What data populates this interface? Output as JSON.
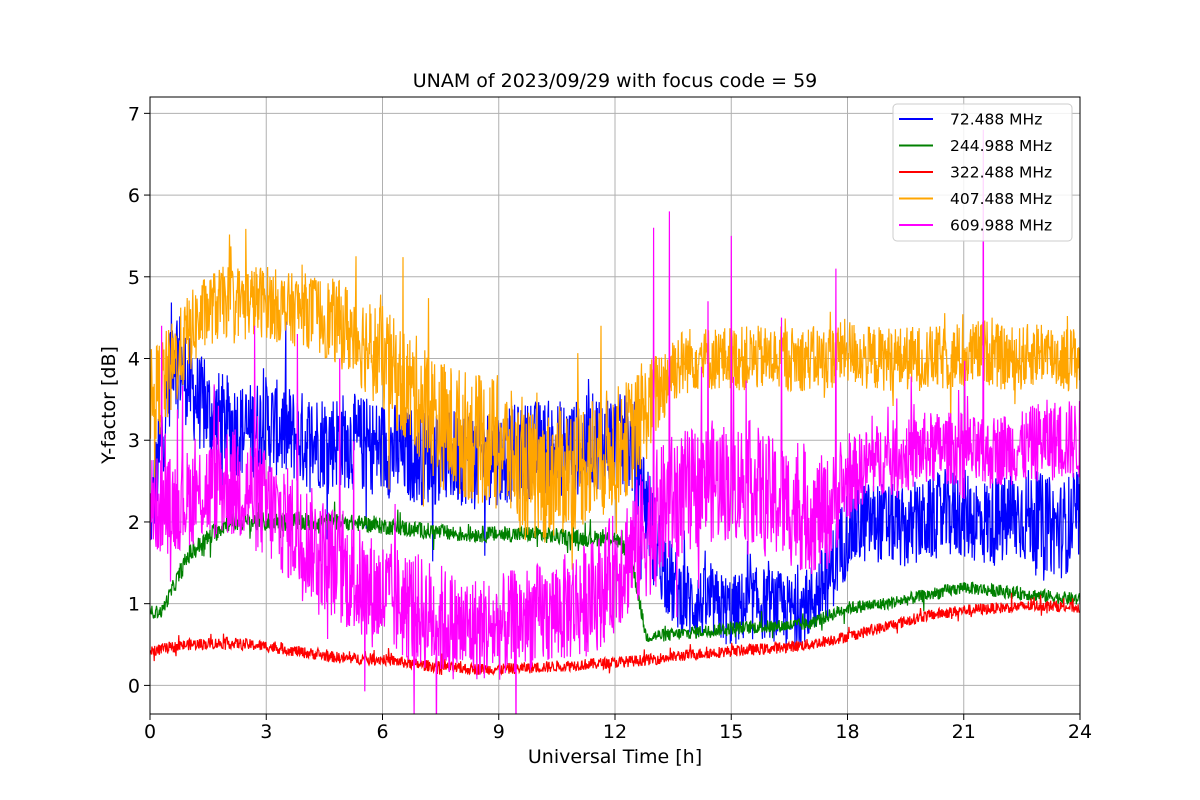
{
  "chart_data": {
    "type": "line",
    "title": "UNAM of 2023/09/29 with focus code = 59",
    "xlabel": "Universal Time [h]",
    "ylabel": "Y-factor [dB]",
    "xlim": [
      0,
      24
    ],
    "ylim": [
      -0.35,
      7.2
    ],
    "xticks": [
      0,
      3,
      6,
      9,
      12,
      15,
      18,
      21,
      24
    ],
    "yticks": [
      0,
      1,
      2,
      3,
      4,
      5,
      6,
      7
    ],
    "grid": true,
    "legend_position": "top-right",
    "series": [
      {
        "name": " 72.488 MHz",
        "color": "#0000ff",
        "x": [
          0,
          0.3,
          0.6,
          0.9,
          1.2,
          1.6,
          2,
          2.5,
          3,
          3.5,
          4,
          5,
          6,
          7,
          8,
          9,
          10,
          11,
          11.5,
          12,
          12.5,
          13,
          13.5,
          14,
          14.5,
          15,
          15.5,
          16,
          16.5,
          17,
          17.5,
          18,
          18.5,
          19,
          19.5,
          20,
          20.5,
          21,
          21.5,
          22,
          22.5,
          23,
          23.5,
          24
        ],
        "y": [
          2.0,
          3.0,
          4.2,
          3.8,
          3.5,
          3.3,
          3.2,
          3.1,
          3.2,
          3.1,
          3.0,
          3.0,
          2.9,
          2.8,
          2.8,
          2.8,
          2.9,
          2.9,
          3.0,
          3.0,
          2.9,
          1.8,
          1.2,
          1.0,
          1.0,
          0.9,
          1.0,
          1.0,
          0.9,
          1.0,
          1.3,
          1.9,
          2.0,
          2.0,
          1.9,
          2.0,
          2.1,
          2.1,
          2.0,
          2.0,
          2.1,
          2.0,
          1.9,
          2.1
        ],
        "noise": [
          0.5,
          0.6,
          0.7,
          0.6,
          0.6,
          0.6,
          0.6,
          0.6,
          0.6,
          0.6,
          0.6,
          0.6,
          0.6,
          0.6,
          0.6,
          0.6,
          0.6,
          0.6,
          0.6,
          0.6,
          0.6,
          0.6,
          0.5,
          0.45,
          0.45,
          0.45,
          0.45,
          0.45,
          0.45,
          0.45,
          0.5,
          0.55,
          0.5,
          0.5,
          0.5,
          0.5,
          0.55,
          0.55,
          0.55,
          0.55,
          0.6,
          0.6,
          0.6,
          0.6
        ]
      },
      {
        "name": "244.988 MHz",
        "color": "#008000",
        "x": [
          0,
          0.3,
          0.6,
          1,
          2,
          3,
          4,
          5,
          6,
          7,
          8,
          9,
          10,
          11,
          12,
          12.4,
          12.8,
          13.5,
          14,
          15,
          16,
          17,
          17.5,
          18,
          19,
          20,
          21,
          22,
          23,
          24
        ],
        "y": [
          0.9,
          0.9,
          1.2,
          1.6,
          2.0,
          2.0,
          2.0,
          2.0,
          1.95,
          1.9,
          1.85,
          1.85,
          1.85,
          1.8,
          1.8,
          1.6,
          0.6,
          0.62,
          0.65,
          0.7,
          0.72,
          0.75,
          0.85,
          0.95,
          1.0,
          1.1,
          1.2,
          1.15,
          1.1,
          1.05
        ],
        "noise": [
          0.08,
          0.08,
          0.1,
          0.12,
          0.12,
          0.12,
          0.12,
          0.1,
          0.1,
          0.1,
          0.1,
          0.1,
          0.1,
          0.1,
          0.1,
          0.1,
          0.08,
          0.08,
          0.08,
          0.08,
          0.08,
          0.08,
          0.08,
          0.08,
          0.08,
          0.08,
          0.08,
          0.08,
          0.08,
          0.08
        ]
      },
      {
        "name": "322.488 MHz",
        "color": "#ff0000",
        "x": [
          0,
          1,
          2,
          3,
          4,
          5,
          6,
          7,
          8,
          9,
          10,
          11,
          12,
          13,
          14,
          15,
          16,
          17,
          18,
          19,
          20,
          21,
          22,
          23,
          24
        ],
        "y": [
          0.42,
          0.5,
          0.52,
          0.48,
          0.4,
          0.33,
          0.32,
          0.25,
          0.2,
          0.2,
          0.22,
          0.25,
          0.28,
          0.32,
          0.38,
          0.42,
          0.45,
          0.5,
          0.6,
          0.72,
          0.85,
          0.92,
          0.95,
          0.98,
          0.95
        ],
        "noise": [
          0.07,
          0.07,
          0.07,
          0.07,
          0.07,
          0.07,
          0.07,
          0.07,
          0.07,
          0.07,
          0.07,
          0.07,
          0.07,
          0.07,
          0.07,
          0.07,
          0.07,
          0.07,
          0.07,
          0.07,
          0.07,
          0.07,
          0.07,
          0.07,
          0.07
        ]
      },
      {
        "name": "407.488 MHz",
        "color": "#ffa500",
        "x": [
          0,
          0.5,
          1,
          1.5,
          2,
          2.5,
          3,
          3.5,
          4,
          4.5,
          5,
          5.5,
          6,
          6.5,
          7,
          7.5,
          8,
          8.5,
          9,
          9.5,
          10,
          10.5,
          11,
          11.5,
          12,
          12.5,
          13,
          13.5,
          14,
          14.5,
          15,
          15.5,
          16,
          16.5,
          17,
          17.5,
          18,
          18.5,
          19,
          19.5,
          20,
          20.5,
          21,
          21.5,
          22,
          22.5,
          23,
          23.5,
          24
        ],
        "y": [
          3.5,
          3.8,
          4.3,
          4.6,
          4.7,
          4.7,
          4.7,
          4.6,
          4.6,
          4.5,
          4.4,
          4.2,
          4.0,
          3.7,
          3.5,
          3.2,
          3.1,
          3.0,
          3.0,
          2.7,
          2.5,
          2.6,
          2.7,
          2.8,
          2.9,
          3.1,
          3.5,
          3.9,
          4.0,
          4.0,
          4.0,
          4.0,
          4.0,
          4.0,
          4.0,
          4.0,
          4.1,
          4.0,
          4.0,
          4.0,
          4.0,
          4.0,
          4.0,
          4.1,
          4.0,
          4.0,
          4.1,
          4.0,
          4.0
        ],
        "noise": [
          0.6,
          0.6,
          0.5,
          0.45,
          0.45,
          0.45,
          0.45,
          0.45,
          0.45,
          0.5,
          0.55,
          0.6,
          0.65,
          0.7,
          0.75,
          0.8,
          0.8,
          0.8,
          0.8,
          0.8,
          0.8,
          0.8,
          0.8,
          0.8,
          0.75,
          0.7,
          0.55,
          0.45,
          0.4,
          0.4,
          0.4,
          0.4,
          0.4,
          0.4,
          0.4,
          0.4,
          0.4,
          0.4,
          0.4,
          0.4,
          0.4,
          0.4,
          0.4,
          0.4,
          0.4,
          0.4,
          0.4,
          0.4,
          0.4
        ]
      },
      {
        "name": "609.988 MHz",
        "color": "#ff00ff",
        "x": [
          0,
          0.5,
          1,
          1.5,
          2,
          2.5,
          3,
          3.5,
          4,
          4.5,
          5,
          5.5,
          6,
          6.5,
          7,
          7.5,
          8,
          8.5,
          9,
          9.5,
          10,
          10.5,
          11,
          11.5,
          12,
          12.5,
          13,
          13.5,
          14,
          14.5,
          15,
          15.5,
          16,
          16.5,
          17,
          17.5,
          18,
          18.5,
          19,
          19.5,
          20,
          20.5,
          21,
          21.5,
          22,
          22.5,
          23,
          23.5,
          24
        ],
        "y": [
          2.2,
          2.2,
          2.3,
          2.4,
          2.5,
          2.4,
          2.2,
          2.0,
          1.8,
          1.6,
          1.4,
          1.2,
          1.1,
          1.0,
          0.9,
          0.8,
          0.7,
          0.7,
          0.7,
          0.8,
          0.85,
          0.9,
          1.0,
          1.1,
          1.4,
          1.7,
          2.0,
          2.3,
          2.4,
          2.5,
          2.5,
          2.5,
          2.3,
          2.2,
          2.1,
          2.1,
          2.5,
          2.7,
          2.8,
          2.8,
          2.9,
          2.9,
          2.9,
          2.8,
          2.9,
          2.9,
          3.0,
          3.0,
          3.0
        ],
        "noise": [
          0.6,
          0.6,
          0.6,
          0.65,
          0.7,
          0.7,
          0.7,
          0.7,
          0.7,
          0.7,
          0.7,
          0.7,
          0.7,
          0.7,
          0.7,
          0.7,
          0.65,
          0.65,
          0.65,
          0.65,
          0.65,
          0.65,
          0.7,
          0.7,
          0.75,
          0.8,
          0.85,
          0.8,
          0.75,
          0.75,
          0.75,
          0.75,
          0.75,
          0.75,
          0.75,
          0.7,
          0.5,
          0.45,
          0.45,
          0.45,
          0.45,
          0.45,
          0.45,
          0.45,
          0.45,
          0.45,
          0.5,
          0.5,
          0.5
        ],
        "spikes": [
          [
            0.3,
            4.4
          ],
          [
            2.7,
            4.4
          ],
          [
            3.8,
            4.3
          ],
          [
            4.9,
            4.0
          ],
          [
            13.0,
            5.6
          ],
          [
            13.4,
            5.8
          ],
          [
            14.4,
            4.7
          ],
          [
            15.0,
            5.5
          ],
          [
            16.3,
            4.5
          ],
          [
            17.7,
            5.1
          ],
          [
            21.5,
            6.8
          ]
        ]
      }
    ]
  }
}
